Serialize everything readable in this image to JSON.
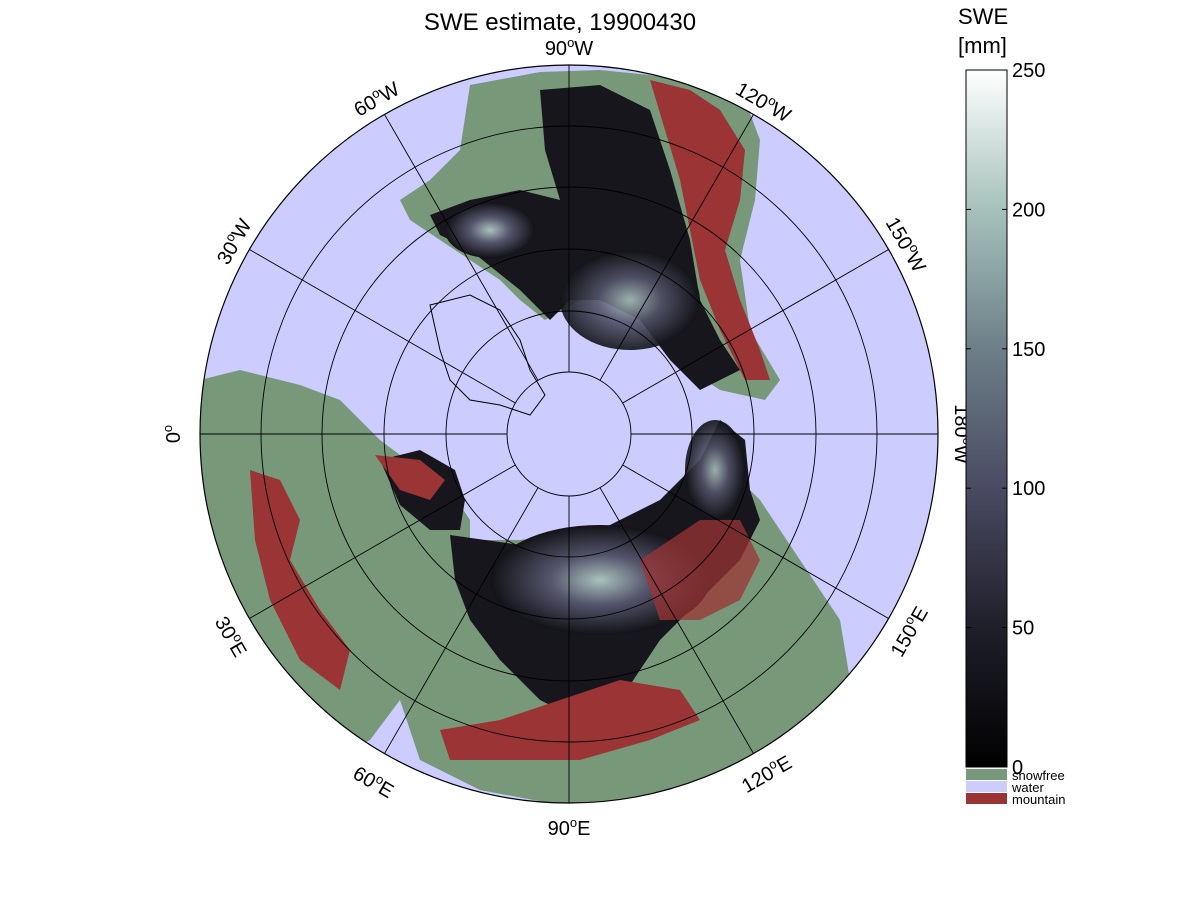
{
  "title": "SWE estimate, 19900430",
  "colors": {
    "water": "#ccccff",
    "snowfree": "#77997a",
    "mountain": "#9b3434",
    "snow_dark": "#111116",
    "snow_mid": "#4f4f66",
    "snow_light": "#9fb8b2"
  },
  "longitude_labels": [
    {
      "deg": "90",
      "hemi": "W"
    },
    {
      "deg": "120",
      "hemi": "W"
    },
    {
      "deg": "150",
      "hemi": "W"
    },
    {
      "deg": "180",
      "hemi": "W"
    },
    {
      "deg": "150",
      "hemi": "E"
    },
    {
      "deg": "120",
      "hemi": "E"
    },
    {
      "deg": "90",
      "hemi": "E"
    },
    {
      "deg": "60",
      "hemi": "E"
    },
    {
      "deg": "30",
      "hemi": "E"
    },
    {
      "deg": "0",
      "hemi": ""
    },
    {
      "deg": "30",
      "hemi": "W"
    },
    {
      "deg": "60",
      "hemi": "W"
    }
  ],
  "colorbar": {
    "title_line1": "SWE",
    "title_line2": "[mm]",
    "ticks": [
      "250",
      "200",
      "150",
      "100",
      "50",
      "0"
    ],
    "range": [
      0,
      250
    ],
    "categories": [
      {
        "label": "snowfree",
        "color": "#77997a"
      },
      {
        "label": "water",
        "color": "#ccccff"
      },
      {
        "label": "mountain",
        "color": "#9b3434"
      }
    ]
  }
}
